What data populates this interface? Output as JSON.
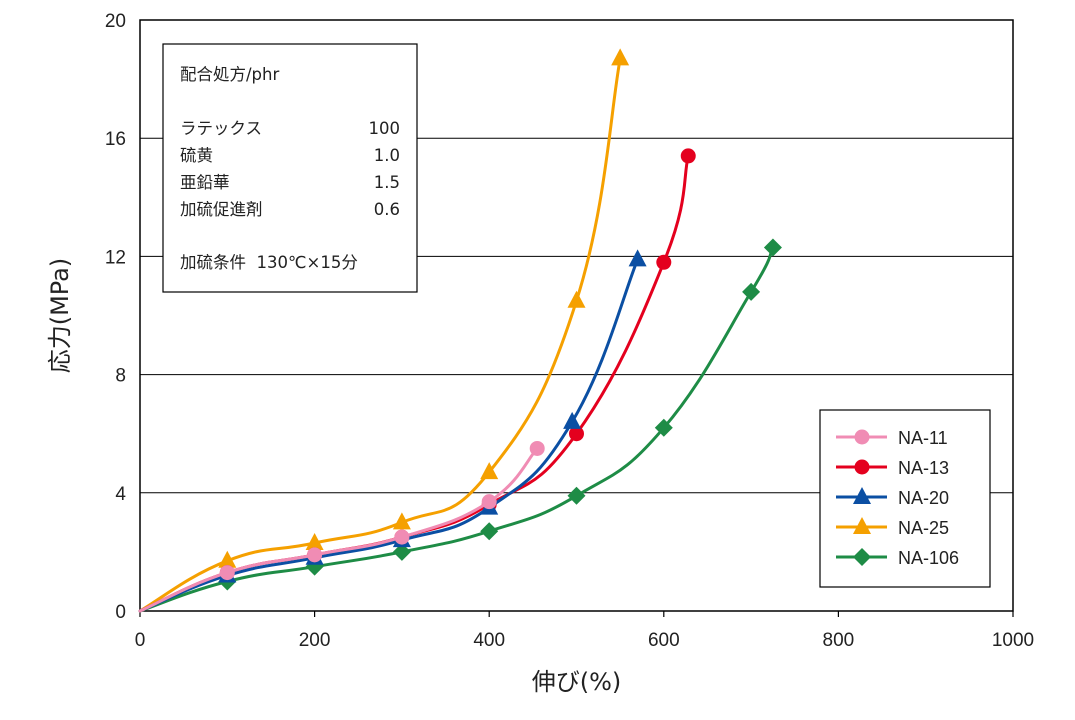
{
  "colors": {
    "NA-11": "#f08cb4",
    "NA-13": "#e4001e",
    "NA-20": "#0b4fa3",
    "NA-25": "#f5a000",
    "NA-106": "#1e8c46"
  },
  "chart_data": {
    "type": "line",
    "xlabel": "伸び(%)",
    "ylabel": "応力(MPa)",
    "xlim": [
      0,
      1000
    ],
    "ylim": [
      0,
      20
    ],
    "x_ticks": [
      "0",
      "200",
      "400",
      "600",
      "800",
      "1000"
    ],
    "y_ticks": [
      "0",
      "4",
      "8",
      "12",
      "16",
      "20"
    ],
    "grid": "horizontal",
    "legend_position": "bottom-right",
    "series": [
      {
        "name": "NA-11",
        "marker": "circle",
        "x": [
          0,
          100,
          200,
          300,
          400,
          455
        ],
        "y": [
          0,
          1.3,
          1.9,
          2.5,
          3.7,
          5.5
        ]
      },
      {
        "name": "NA-13",
        "marker": "circle",
        "x": [
          0,
          100,
          200,
          300,
          400,
          500,
          600,
          628
        ],
        "y": [
          0,
          1.3,
          1.9,
          2.5,
          3.6,
          6.0,
          11.8,
          15.4
        ]
      },
      {
        "name": "NA-20",
        "marker": "triangle",
        "x": [
          0,
          100,
          200,
          300,
          400,
          495,
          570
        ],
        "y": [
          0,
          1.2,
          1.8,
          2.4,
          3.5,
          6.4,
          11.9
        ]
      },
      {
        "name": "NA-25",
        "marker": "triangle",
        "x": [
          0,
          100,
          200,
          300,
          400,
          500,
          550
        ],
        "y": [
          0,
          1.7,
          2.3,
          3.0,
          4.7,
          10.5,
          18.7
        ]
      },
      {
        "name": "NA-106",
        "marker": "diamond",
        "x": [
          0,
          100,
          200,
          300,
          400,
          500,
          600,
          700,
          725
        ],
        "y": [
          0,
          1.0,
          1.5,
          2.0,
          2.7,
          3.9,
          6.2,
          10.8,
          12.3
        ]
      }
    ]
  },
  "recipe": {
    "title": "配合処方/phr",
    "rows": [
      {
        "name": "ラテックス",
        "value": "100"
      },
      {
        "name": "硫黄",
        "value": "1.0"
      },
      {
        "name": "亜鉛華",
        "value": "1.5"
      },
      {
        "name": "加硫促進剤",
        "value": "0.6"
      }
    ],
    "condition": "加硫条件  130℃×15分"
  }
}
